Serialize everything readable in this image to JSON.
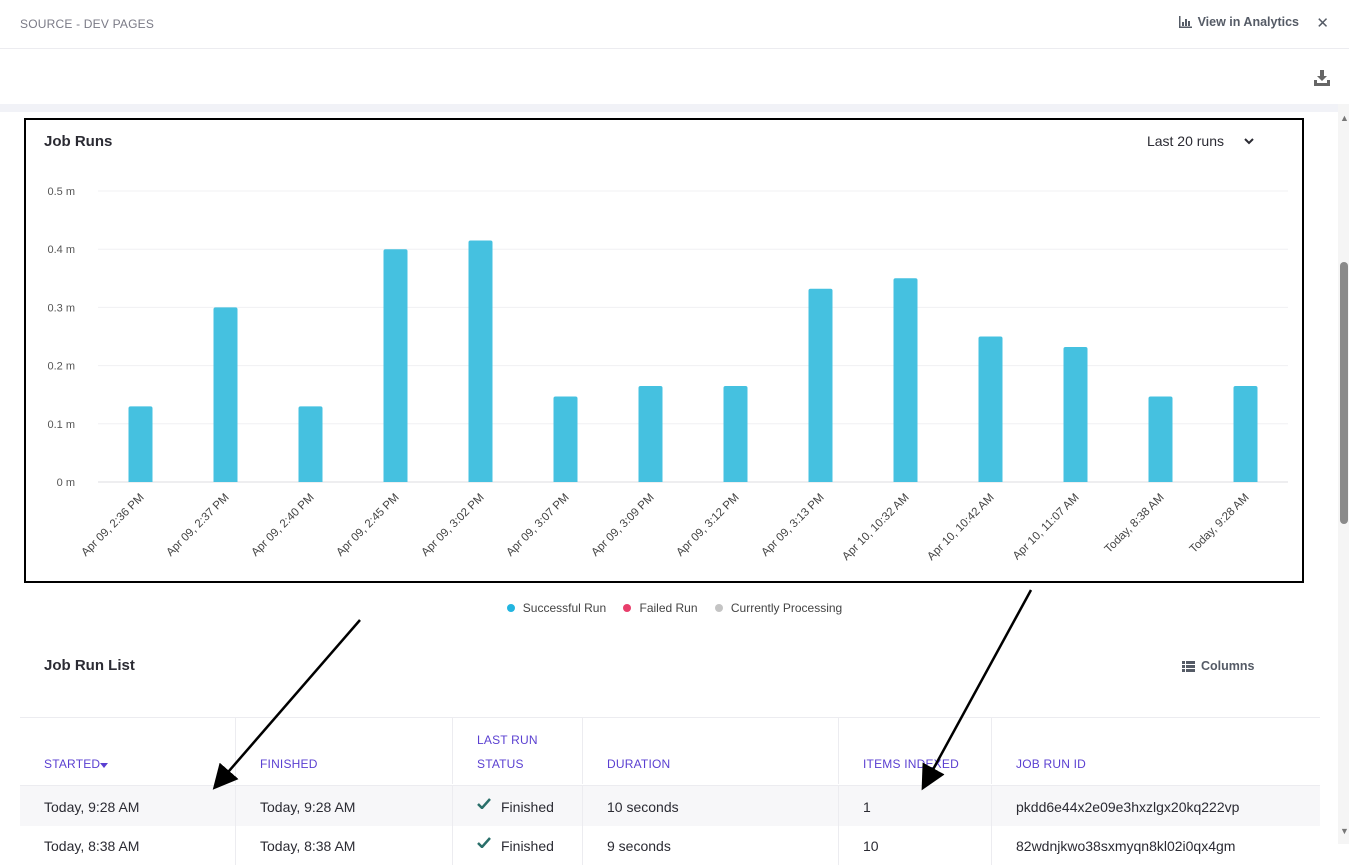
{
  "header": {
    "title": "SOURCE - DEV PAGES",
    "analytics_label": "View in Analytics",
    "close_label": "✕"
  },
  "chart": {
    "title": "Job Runs",
    "range_label": "Last 20 runs"
  },
  "chart_data": {
    "type": "bar",
    "title": "Job Runs",
    "ylabel": "",
    "xlabel": "",
    "ylim": [
      0,
      0.5
    ],
    "y_ticks": [
      "0 m",
      "0.1 m",
      "0.2 m",
      "0.3 m",
      "0.4 m",
      "0.5 m"
    ],
    "categories": [
      "Apr 09, 2:36 PM",
      "Apr 09, 2:37 PM",
      "Apr 09, 2:40 PM",
      "Apr 09, 2:45 PM",
      "Apr 09, 3:02 PM",
      "Apr 09, 3:07 PM",
      "Apr 09, 3:09 PM",
      "Apr 09, 3:12 PM",
      "Apr 09, 3:13 PM",
      "Apr 10, 10:32 AM",
      "Apr 10, 10:42 AM",
      "Apr 10, 11:07 AM",
      "Today, 8:38 AM",
      "Today, 9:28 AM"
    ],
    "series": [
      {
        "name": "Successful Run",
        "color": "#45c1e0",
        "values": [
          0.13,
          0.3,
          0.13,
          0.4,
          0.415,
          0.147,
          0.165,
          0.165,
          0.332,
          0.35,
          0.25,
          0.232,
          0.147,
          0.165
        ]
      }
    ],
    "grid": true,
    "legend_placement": "bottom"
  },
  "legend": [
    {
      "label": "Successful Run",
      "color": "#22b5e0"
    },
    {
      "label": "Failed Run",
      "color": "#e83e6b"
    },
    {
      "label": "Currently Processing",
      "color": "#c4c4c4"
    }
  ],
  "job_list": {
    "title": "Job Run List",
    "columns_label": "Columns",
    "headers": [
      "STARTED",
      "FINISHED",
      "LAST RUN",
      "STATUS",
      "DURATION",
      "ITEMS INDEXED",
      "JOB RUN ID"
    ],
    "rows": [
      {
        "started": "Today, 9:28 AM",
        "finished": "Today, 9:28 AM",
        "status": "Finished",
        "duration": "10 seconds",
        "items": "1",
        "id": "pkdd6e44x2e09e3hxzlgx20kq222vp"
      },
      {
        "started": "Today, 8:38 AM",
        "finished": "Today, 8:38 AM",
        "status": "Finished",
        "duration": "9 seconds",
        "items": "10",
        "id": "82wdnjkwo38sxmyqn8kl02i0qx4gm"
      }
    ]
  },
  "colors": {
    "accent": "#5a3fd1",
    "bar": "#45c1e0",
    "success_check": "#2a6f6a"
  }
}
